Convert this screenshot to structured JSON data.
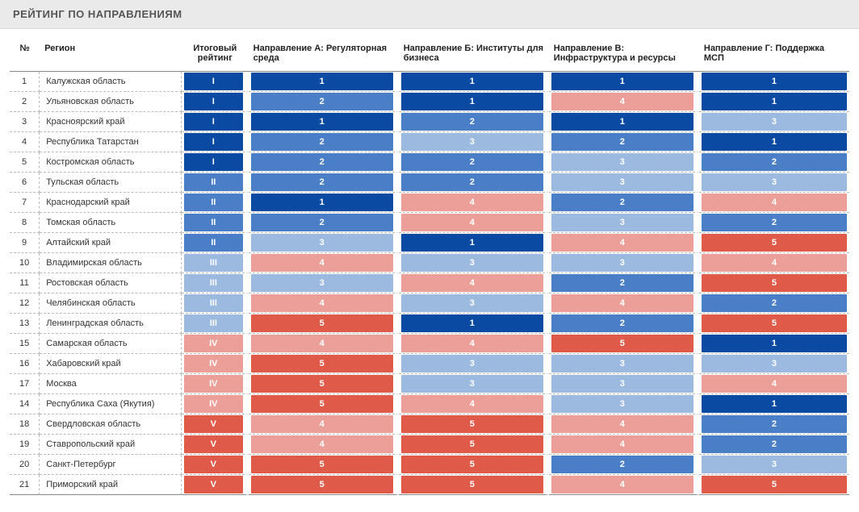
{
  "title": "РЕЙТИНГ ПО НАПРАВЛЕНИЯМ",
  "columns": {
    "num": "№",
    "region": "Регион",
    "total": "Итоговый рейтинг",
    "dirA": "Направление А: Регуляторная среда",
    "dirB": "Направление Б: Институты для бизнеса",
    "dirC": "Направление В: Инфраструктура и ресурсы",
    "dirD": "Направление Г: Поддержка МСП"
  },
  "palette": {
    "1": "#0a4aa3",
    "2": "#4a7fc7",
    "3": "#9cb9df",
    "4": "#ec9f98",
    "5": "#e05a4a",
    "I": "#0a4aa3",
    "II": "#4a7fc7",
    "III": "#9cb9df",
    "IV": "#ec9f98",
    "V": "#e05a4a"
  },
  "rows": [
    {
      "n": "1",
      "region": "Калужская область",
      "total": "I",
      "a": "1",
      "b": "1",
      "c": "1",
      "d": "1"
    },
    {
      "n": "2",
      "region": "Ульяновская область",
      "total": "I",
      "a": "2",
      "b": "1",
      "c": "4",
      "d": "1"
    },
    {
      "n": "3",
      "region": "Красноярский край",
      "total": "I",
      "a": "1",
      "b": "2",
      "c": "1",
      "d": "3"
    },
    {
      "n": "4",
      "region": "Республика Татарстан",
      "total": "I",
      "a": "2",
      "b": "3",
      "c": "2",
      "d": "1"
    },
    {
      "n": "5",
      "region": "Костромская область",
      "total": "I",
      "a": "2",
      "b": "2",
      "c": "3",
      "d": "2"
    },
    {
      "n": "6",
      "region": "Тульская область",
      "total": "II",
      "a": "2",
      "b": "2",
      "c": "3",
      "d": "3"
    },
    {
      "n": "7",
      "region": "Краснодарский край",
      "total": "II",
      "a": "1",
      "b": "4",
      "c": "2",
      "d": "4"
    },
    {
      "n": "8",
      "region": "Томская область",
      "total": "II",
      "a": "2",
      "b": "4",
      "c": "3",
      "d": "2"
    },
    {
      "n": "9",
      "region": "Алтайский край",
      "total": "II",
      "a": "3",
      "b": "1",
      "c": "4",
      "d": "5"
    },
    {
      "n": "10",
      "region": "Владимирская область",
      "total": "III",
      "a": "4",
      "b": "3",
      "c": "3",
      "d": "4"
    },
    {
      "n": "11",
      "region": "Ростовская область",
      "total": "III",
      "a": "3",
      "b": "4",
      "c": "2",
      "d": "5"
    },
    {
      "n": "12",
      "region": "Челябинская область",
      "total": "III",
      "a": "4",
      "b": "3",
      "c": "4",
      "d": "2"
    },
    {
      "n": "13",
      "region": "Ленинградская область",
      "total": "III",
      "a": "5",
      "b": "1",
      "c": "2",
      "d": "5"
    },
    {
      "n": "15",
      "region": "Самарская область",
      "total": "IV",
      "a": "4",
      "b": "4",
      "c": "5",
      "d": "1"
    },
    {
      "n": "16",
      "region": "Хабаровский край",
      "total": "IV",
      "a": "5",
      "b": "3",
      "c": "3",
      "d": "3"
    },
    {
      "n": "17",
      "region": "Москва",
      "total": "IV",
      "a": "5",
      "b": "3",
      "c": "3",
      "d": "4"
    },
    {
      "n": "14",
      "region": "Республика Саха (Якутия)",
      "total": "IV",
      "a": "5",
      "b": "4",
      "c": "3",
      "d": "1"
    },
    {
      "n": "18",
      "region": "Свердловская область",
      "total": "V",
      "a": "4",
      "b": "5",
      "c": "4",
      "d": "2"
    },
    {
      "n": "19",
      "region": "Ставропольский край",
      "total": "V",
      "a": "4",
      "b": "5",
      "c": "4",
      "d": "2"
    },
    {
      "n": "20",
      "region": "Санкт-Петербург",
      "total": "V",
      "a": "5",
      "b": "5",
      "c": "2",
      "d": "3"
    },
    {
      "n": "21",
      "region": "Приморский край",
      "total": "V",
      "a": "5",
      "b": "5",
      "c": "4",
      "d": "5"
    }
  ]
}
